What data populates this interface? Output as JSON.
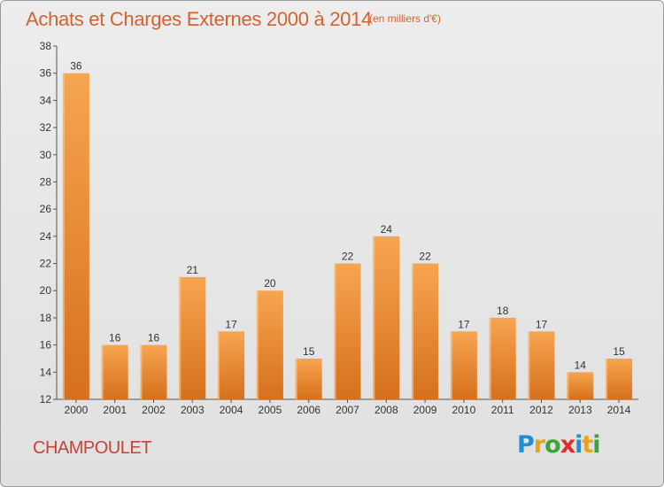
{
  "header": {
    "title": "Achats et Charges Externes 2000 à 2014",
    "subtitle": "(en milliers d'€)"
  },
  "footer": {
    "commune": "CHAMPOULET",
    "logo_letters": [
      "P",
      "r",
      "o",
      "x",
      "i",
      "t",
      "i"
    ]
  },
  "colors": {
    "title": "#d4622f",
    "commune": "#c8423c",
    "bar_light": "#f6a24e",
    "bar_dark": "#d8741f",
    "logo": [
      "#1f8fd2",
      "#e8a21b",
      "#3aa63a",
      "#d6302b",
      "#1f8fd2",
      "#e8a21b",
      "#3aa63a"
    ]
  },
  "chart_data": {
    "type": "bar",
    "title": "Achats et Charges Externes 2000 à 2014",
    "subtitle": "(en milliers d'€)",
    "categories": [
      "2000",
      "2001",
      "2002",
      "2003",
      "2004",
      "2005",
      "2006",
      "2007",
      "2008",
      "2009",
      "2010",
      "2011",
      "2012",
      "2013",
      "2014"
    ],
    "values": [
      36,
      16,
      16,
      21,
      17,
      20,
      15,
      22,
      24,
      22,
      17,
      18,
      17,
      14,
      15
    ],
    "data_labels": [
      "36",
      "16",
      "16",
      "21",
      "17",
      "20",
      "15",
      "22",
      "24",
      "22",
      "17",
      "18",
      "17",
      "14",
      "15"
    ],
    "yticks": [
      "12",
      "14",
      "16",
      "18",
      "20",
      "22",
      "24",
      "26",
      "28",
      "30",
      "32",
      "34",
      "36",
      "38"
    ],
    "ylim": [
      12,
      38
    ],
    "grid": false,
    "xlabel": "",
    "ylabel": ""
  }
}
